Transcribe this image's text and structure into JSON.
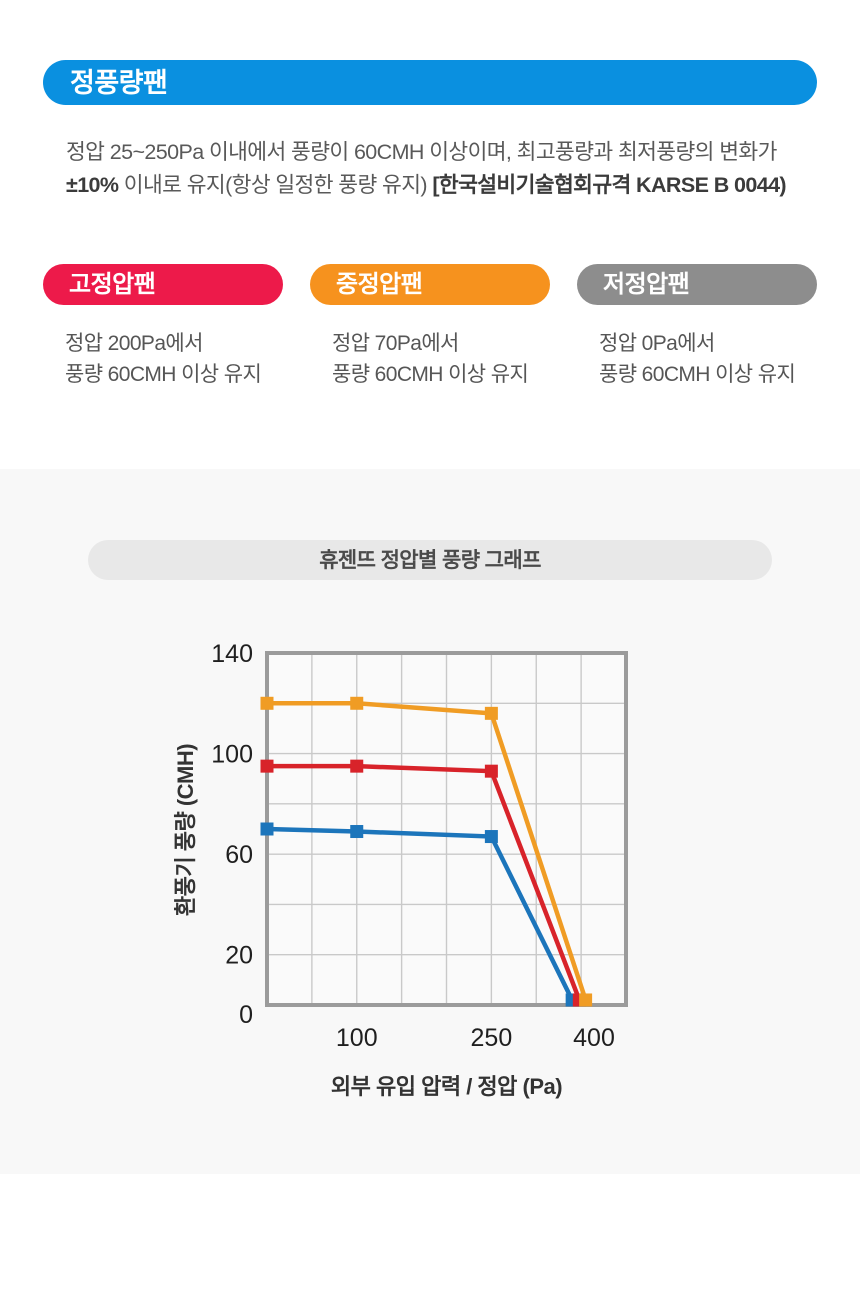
{
  "hero": {
    "label": "정풍량팬",
    "color": "#0a90e0",
    "desc_line1": "정압 25~250Pa 이내에서 풍량이 60CMH 이상이며, 최고풍량과 최저풍량의 변화가",
    "desc_bold1": "±10%",
    "desc_mid": " 이내로 유지(항상 일정한 풍량 유지) ",
    "desc_bold2": "[한국설비기술협회규격 KARSE B 0044)"
  },
  "fan_types": [
    {
      "label": "고정압팬",
      "color": "#ed1a4a",
      "line1": "정압 200Pa에서",
      "line2": "풍량 60CMH 이상 유지"
    },
    {
      "label": "중정압팬",
      "color": "#f6921e",
      "line1": "정압 70Pa에서",
      "line2": "풍량 60CMH 이상 유지"
    },
    {
      "label": "저정압팬",
      "color": "#8d8d8d",
      "line1": "정압 0Pa에서",
      "line2": "풍량 60CMH 이상 유지"
    }
  ],
  "chart_section_title": "휴젠뜨 정압별 풍량 그래프",
  "chart_data": {
    "type": "line",
    "title": "휴젠뜨 정압별 풍량 그래프",
    "xlabel": "외부 유입 압력 / 정압 (Pa)",
    "ylabel": "환풍기 풍량 (CMH)",
    "xlim": [
      0,
      400
    ],
    "ylim": [
      0,
      140
    ],
    "x_grid_step": 50,
    "y_grid_step": 20,
    "grid": true,
    "legend": false,
    "x_ticks": [
      {
        "value": 100,
        "label": "100"
      },
      {
        "value": 250,
        "label": "250"
      },
      {
        "value": 400,
        "label": "400"
      }
    ],
    "y_ticks": [
      {
        "value": 0,
        "label": "0"
      },
      {
        "value": 20,
        "label": "20"
      },
      {
        "value": 60,
        "label": "60"
      },
      {
        "value": 100,
        "label": "100"
      },
      {
        "value": 140,
        "label": "140"
      }
    ],
    "series": [
      {
        "name": "blue-line",
        "color": "#1c75bb",
        "points": [
          [
            0,
            70
          ],
          [
            100,
            69
          ],
          [
            250,
            67
          ],
          [
            340,
            2
          ]
        ]
      },
      {
        "name": "red-line",
        "color": "#d8232a",
        "points": [
          [
            0,
            95
          ],
          [
            100,
            95
          ],
          [
            250,
            93
          ],
          [
            348,
            2
          ]
        ]
      },
      {
        "name": "orange-line",
        "color": "#f09c24",
        "points": [
          [
            0,
            120
          ],
          [
            100,
            120
          ],
          [
            250,
            116
          ],
          [
            355,
            2
          ]
        ]
      }
    ],
    "plot_style": {
      "border_color": "#9b9b9b",
      "grid_color": "#c9c9c9",
      "plot_bg": "#fafafa",
      "tick_color": "#1f1f1f"
    }
  }
}
